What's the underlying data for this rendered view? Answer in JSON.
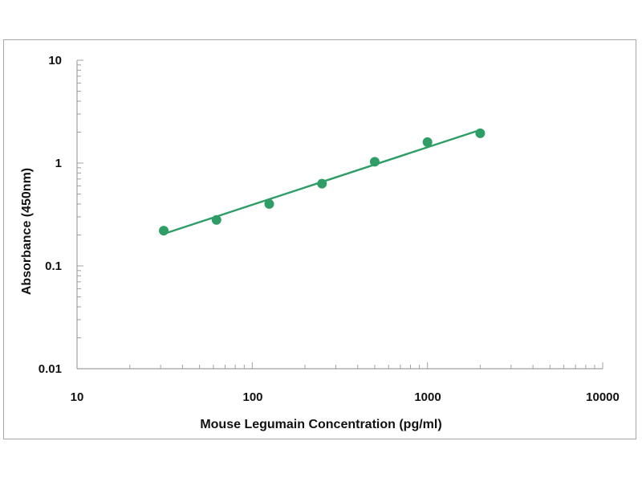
{
  "chart_data": {
    "type": "scatter",
    "xlabel": "Mouse Legumain Concentration (pg/ml)",
    "ylabel": "Absorbance (450nm)",
    "x_scale": "log",
    "y_scale": "log",
    "xlim": [
      10,
      10000
    ],
    "ylim": [
      0.01,
      10
    ],
    "x_ticks": [
      10,
      100,
      1000,
      10000
    ],
    "x_tick_labels": [
      "10",
      "100",
      "1000",
      "10000"
    ],
    "y_ticks": [
      10,
      1,
      0.1,
      0.01
    ],
    "y_tick_labels": [
      "10",
      "1",
      "0.1",
      "0.01"
    ],
    "grid": false,
    "series": [
      {
        "marker": "circle",
        "x": [
          31.25,
          62.5,
          125,
          250,
          500,
          1000,
          2000
        ],
        "y": [
          0.22,
          0.28,
          0.4,
          0.63,
          1.03,
          1.6,
          1.95
        ]
      }
    ],
    "fit_line": {
      "type": "linear-log-log",
      "x": [
        31.25,
        2000
      ],
      "y": [
        0.205,
        2.1
      ]
    },
    "colors": {
      "points": "#2e9e66",
      "line": "#2e9e66",
      "axes": "#a0a0a0",
      "text": "#111111"
    }
  }
}
